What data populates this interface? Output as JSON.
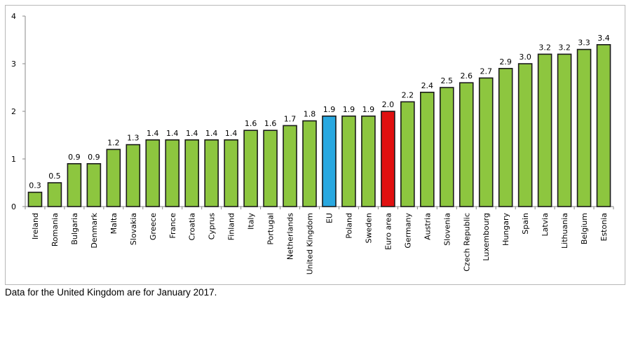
{
  "chart_data": {
    "type": "bar",
    "title": "",
    "xlabel": "",
    "ylabel": "",
    "ylim": [
      0,
      4
    ],
    "yticks": [
      0,
      1,
      2,
      3,
      4
    ],
    "grid": false,
    "legend": "none",
    "categories": [
      "Ireland",
      "Romania",
      "Bulgaria",
      "Denmark",
      "Malta",
      "Slovakia",
      "Greece",
      "France",
      "Croatia",
      "Cyprus",
      "Finland",
      "Italy",
      "Portugal",
      "Netherlands",
      "United Kingdom",
      "EU",
      "Poland",
      "Sweden",
      "Euro area",
      "Germany",
      "Austria",
      "Slovenia",
      "Czech Republic",
      "Luxembourg",
      "Hungary",
      "Spain",
      "Latvia",
      "Lithuania",
      "Belgium",
      "Estonia"
    ],
    "values": [
      0.3,
      0.5,
      0.9,
      0.9,
      1.2,
      1.3,
      1.4,
      1.4,
      1.4,
      1.4,
      1.4,
      1.6,
      1.6,
      1.7,
      1.8,
      1.9,
      1.9,
      1.9,
      2.0,
      2.2,
      2.4,
      2.5,
      2.6,
      2.7,
      2.9,
      3.0,
      3.2,
      3.2,
      3.3,
      3.4
    ],
    "value_labels": [
      "0.3",
      "0.5",
      "0.9",
      "0.9",
      "1.2",
      "1.3",
      "1.4",
      "1.4",
      "1.4",
      "1.4",
      "1.4",
      "1.6",
      "1.6",
      "1.7",
      "1.8",
      "1.9",
      "1.9",
      "1.9",
      "2.0",
      "2.2",
      "2.4",
      "2.5",
      "2.6",
      "2.7",
      "2.9",
      "3.0",
      "3.2",
      "3.2",
      "3.3",
      "3.4"
    ],
    "colors": {
      "default": "#8dc63f",
      "EU": "#29a8e0",
      "Euro area": "#e01010",
      "outline": "#1a1a1a"
    }
  },
  "note": "Data for the United Kingdom are for January 2017."
}
